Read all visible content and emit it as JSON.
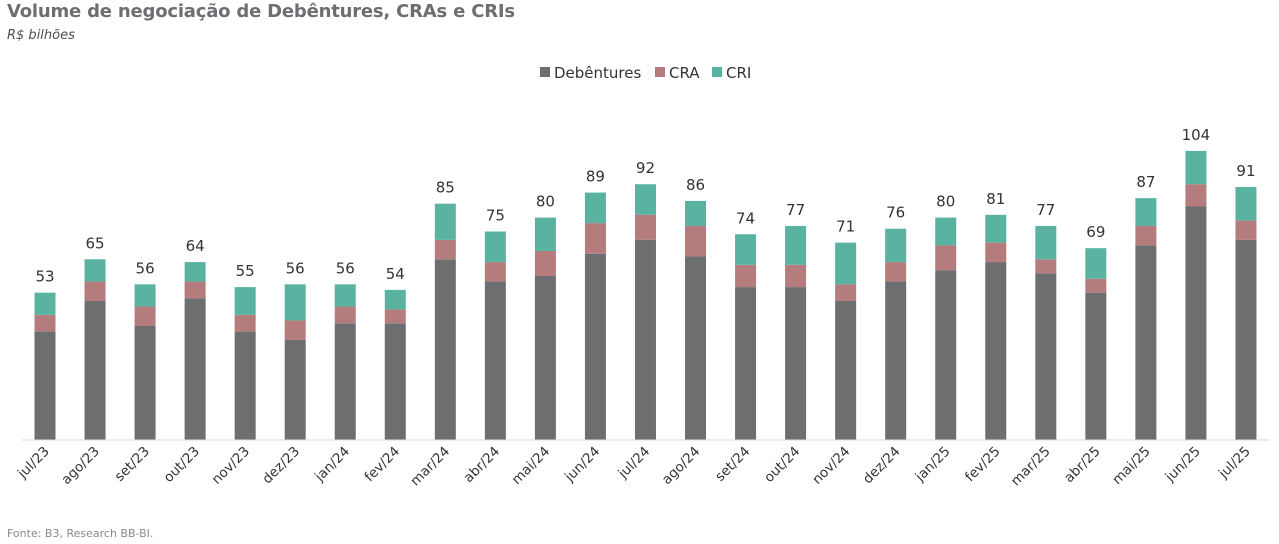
{
  "header": {
    "title": "Volume de negociação de Debêntures, CRAs e CRIs",
    "subtitle": "R$ bilhões"
  },
  "footer": {
    "source": "Fonte: B3, Research BB-BI."
  },
  "chart_data": {
    "type": "bar",
    "stacked": true,
    "title": "Volume de negociação de Debêntures, CRAs e CRIs",
    "subtitle": "R$ bilhões",
    "xlabel": "",
    "ylabel": "",
    "ylim": [
      0,
      115
    ],
    "grid": false,
    "legend_position": "top-center",
    "categories": [
      "jul/23",
      "ago/23",
      "set/23",
      "out/23",
      "nov/23",
      "dez/23",
      "jan/24",
      "fev/24",
      "mar/24",
      "abr/24",
      "mai/24",
      "jun/24",
      "jul/24",
      "ago/24",
      "set/24",
      "out/24",
      "nov/24",
      "dez/24",
      "jan/25",
      "fev/25",
      "mar/25",
      "abr/25",
      "mai/25",
      "jun/25",
      "jul/25"
    ],
    "series": [
      {
        "name": "Debêntures",
        "color": "#6d6e70",
        "values": [
          39,
          50,
          41,
          51,
          39,
          36,
          42,
          42,
          65,
          57,
          59,
          67,
          72,
          66,
          55,
          55,
          50,
          57,
          61,
          64,
          60,
          53,
          70,
          84,
          72
        ]
      },
      {
        "name": "CRA",
        "color": "#b57c7e",
        "values": [
          6,
          7,
          7,
          6,
          6,
          7,
          6,
          5,
          7,
          7,
          9,
          11,
          9,
          11,
          8,
          8,
          6,
          7,
          9,
          7,
          5,
          5,
          7,
          8,
          7
        ]
      },
      {
        "name": "CRI",
        "color": "#5ab2a0",
        "values": [
          8,
          8,
          8,
          7,
          10,
          13,
          8,
          7,
          13,
          11,
          12,
          11,
          11,
          9,
          11,
          14,
          15,
          12,
          10,
          10,
          12,
          11,
          10,
          12,
          12
        ]
      }
    ],
    "totals": [
      53,
      65,
      56,
      64,
      55,
      56,
      56,
      54,
      85,
      75,
      80,
      89,
      92,
      86,
      74,
      77,
      71,
      76,
      80,
      81,
      77,
      69,
      87,
      104,
      91
    ]
  }
}
